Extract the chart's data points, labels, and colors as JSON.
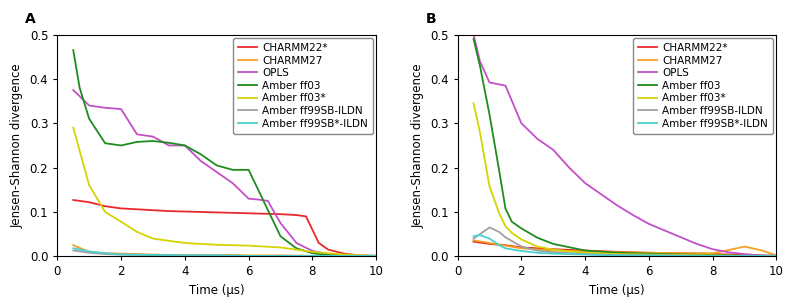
{
  "panel_A": {
    "label": "A",
    "xlabel": "Time (μs)",
    "ylabel": "Jensen-Shannon divergence",
    "xlim": [
      0,
      10
    ],
    "ylim": [
      0,
      0.5
    ],
    "xticks": [
      0,
      2,
      4,
      6,
      8,
      10
    ],
    "yticks": [
      0.0,
      0.1,
      0.2,
      0.3,
      0.4,
      0.5
    ],
    "series": {
      "CHARMM22*": {
        "color": "#e8292a",
        "x": [
          0.5,
          1.0,
          1.5,
          2.0,
          2.5,
          3.0,
          3.5,
          4.0,
          4.5,
          5.0,
          5.5,
          6.0,
          6.5,
          7.0,
          7.5,
          7.8,
          8.2,
          8.5,
          9.0,
          9.5,
          10.0
        ],
        "y": [
          0.127,
          0.122,
          0.113,
          0.108,
          0.106,
          0.104,
          0.102,
          0.101,
          0.1,
          0.099,
          0.098,
          0.097,
          0.096,
          0.095,
          0.093,
          0.09,
          0.03,
          0.015,
          0.006,
          0.002,
          0.001
        ]
      },
      "CHARMM27": {
        "color": "#f4a022",
        "x": [
          0.5,
          1.0,
          1.5,
          2.0,
          2.5,
          3.0,
          3.5,
          4.0,
          4.5,
          5.0,
          5.5,
          6.0,
          6.5,
          7.0,
          8.0,
          9.0,
          10.0
        ],
        "y": [
          0.025,
          0.01,
          0.007,
          0.006,
          0.005,
          0.004,
          0.003,
          0.003,
          0.003,
          0.003,
          0.003,
          0.002,
          0.002,
          0.002,
          0.001,
          0.001,
          0.001
        ]
      },
      "OPLS": {
        "color": "#c44fc9",
        "x": [
          0.5,
          1.0,
          1.5,
          2.0,
          2.5,
          3.0,
          3.5,
          4.0,
          4.5,
          5.0,
          5.5,
          6.0,
          6.3,
          6.6,
          7.0,
          7.5,
          8.0,
          8.5,
          9.0,
          9.5,
          10.0
        ],
        "y": [
          0.375,
          0.34,
          0.335,
          0.332,
          0.275,
          0.27,
          0.25,
          0.25,
          0.215,
          0.19,
          0.165,
          0.13,
          0.128,
          0.125,
          0.075,
          0.03,
          0.012,
          0.005,
          0.003,
          0.001,
          0.001
        ]
      },
      "Amber ff03": {
        "color": "#1e8c1e",
        "x": [
          0.5,
          0.7,
          1.0,
          1.5,
          2.0,
          2.5,
          3.0,
          3.5,
          4.0,
          4.5,
          5.0,
          5.5,
          6.0,
          6.5,
          7.0,
          7.5,
          8.0,
          8.5,
          9.0,
          10.0
        ],
        "y": [
          0.465,
          0.38,
          0.31,
          0.255,
          0.25,
          0.258,
          0.26,
          0.256,
          0.25,
          0.23,
          0.205,
          0.195,
          0.195,
          0.12,
          0.045,
          0.018,
          0.007,
          0.003,
          0.001,
          0.001
        ]
      },
      "Amber ff03*": {
        "color": "#d4d400",
        "x": [
          0.5,
          1.0,
          1.5,
          2.0,
          2.5,
          3.0,
          3.5,
          4.0,
          4.5,
          5.0,
          5.5,
          6.0,
          6.5,
          7.0,
          7.5,
          8.0,
          9.0,
          10.0
        ],
        "y": [
          0.29,
          0.16,
          0.1,
          0.078,
          0.055,
          0.04,
          0.035,
          0.03,
          0.028,
          0.026,
          0.025,
          0.024,
          0.022,
          0.02,
          0.015,
          0.01,
          0.004,
          0.001
        ]
      },
      "Amber ff99SB-ILDN": {
        "color": "#a0a0a0",
        "x": [
          0.5,
          1.0,
          1.5,
          2.0,
          3.0,
          4.0,
          5.0,
          6.0,
          7.0,
          8.0,
          9.0,
          10.0
        ],
        "y": [
          0.013,
          0.008,
          0.005,
          0.004,
          0.003,
          0.002,
          0.002,
          0.001,
          0.001,
          0.001,
          0.001,
          0.001
        ]
      },
      "Amber ff99SB*-ILDN": {
        "color": "#4bcfcf",
        "x": [
          0.5,
          1.0,
          1.5,
          2.0,
          3.0,
          4.0,
          5.0,
          6.0,
          7.0,
          8.0,
          9.0,
          10.0
        ],
        "y": [
          0.018,
          0.011,
          0.007,
          0.004,
          0.003,
          0.002,
          0.002,
          0.001,
          0.001,
          0.001,
          0.001,
          0.001
        ]
      }
    }
  },
  "panel_B": {
    "label": "B",
    "xlabel": "Time (μs)",
    "ylabel": "Jensen-Shannon divergence",
    "xlim": [
      0,
      10
    ],
    "ylim": [
      0,
      0.5
    ],
    "xticks": [
      0,
      2,
      4,
      6,
      8,
      10
    ],
    "yticks": [
      0.0,
      0.1,
      0.2,
      0.3,
      0.4,
      0.5
    ],
    "series": {
      "CHARMM22*": {
        "color": "#e8292a",
        "x": [
          0.5,
          1.0,
          1.5,
          2.0,
          3.0,
          4.0,
          5.0,
          6.0,
          7.0,
          8.0,
          9.0,
          9.5,
          10.0
        ],
        "y": [
          0.033,
          0.028,
          0.025,
          0.02,
          0.016,
          0.013,
          0.01,
          0.008,
          0.007,
          0.005,
          0.003,
          0.002,
          0.001
        ]
      },
      "CHARMM27": {
        "color": "#f4a022",
        "x": [
          0.5,
          1.0,
          1.5,
          2.0,
          3.0,
          4.0,
          5.0,
          6.0,
          7.0,
          8.0,
          8.5,
          9.0,
          9.5,
          10.0
        ],
        "y": [
          0.036,
          0.03,
          0.024,
          0.018,
          0.013,
          0.011,
          0.009,
          0.008,
          0.007,
          0.007,
          0.014,
          0.022,
          0.014,
          0.002
        ]
      },
      "OPLS": {
        "color": "#c44fc9",
        "x": [
          0.5,
          0.7,
          1.0,
          1.5,
          2.0,
          2.5,
          3.0,
          3.5,
          4.0,
          4.5,
          5.0,
          5.5,
          6.0,
          6.5,
          7.0,
          7.5,
          8.0,
          8.5,
          9.0,
          9.5,
          10.0
        ],
        "y": [
          0.5,
          0.44,
          0.392,
          0.385,
          0.3,
          0.265,
          0.24,
          0.2,
          0.165,
          0.14,
          0.115,
          0.093,
          0.073,
          0.058,
          0.043,
          0.028,
          0.016,
          0.009,
          0.005,
          0.002,
          0.001
        ]
      },
      "Amber ff03": {
        "color": "#1e8c1e",
        "x": [
          0.5,
          0.7,
          1.0,
          1.3,
          1.5,
          1.7,
          2.0,
          2.5,
          3.0,
          4.0,
          5.0,
          6.0,
          7.0,
          8.0,
          9.0,
          10.0
        ],
        "y": [
          0.49,
          0.43,
          0.32,
          0.195,
          0.108,
          0.078,
          0.063,
          0.042,
          0.028,
          0.013,
          0.008,
          0.006,
          0.004,
          0.003,
          0.001,
          0.001
        ]
      },
      "Amber ff03*": {
        "color": "#d4d400",
        "x": [
          0.5,
          0.7,
          1.0,
          1.3,
          1.5,
          1.7,
          2.0,
          2.5,
          3.0,
          4.0,
          5.0,
          6.0,
          7.0,
          8.0,
          9.0,
          10.0
        ],
        "y": [
          0.345,
          0.28,
          0.158,
          0.098,
          0.068,
          0.053,
          0.038,
          0.022,
          0.015,
          0.008,
          0.005,
          0.004,
          0.003,
          0.002,
          0.001,
          0.001
        ]
      },
      "Amber ff99SB-ILDN": {
        "color": "#a0a0a0",
        "x": [
          0.5,
          0.7,
          1.0,
          1.3,
          1.5,
          2.0,
          2.5,
          3.0,
          4.0,
          5.0,
          6.0,
          7.0,
          8.0,
          9.0,
          10.0
        ],
        "y": [
          0.04,
          0.05,
          0.065,
          0.055,
          0.043,
          0.022,
          0.013,
          0.009,
          0.005,
          0.003,
          0.002,
          0.002,
          0.001,
          0.001,
          0.001
        ]
      },
      "Amber ff99SB*-ILDN": {
        "color": "#4bcfcf",
        "x": [
          0.5,
          0.7,
          1.0,
          1.3,
          1.5,
          2.0,
          2.5,
          3.0,
          4.0,
          5.0,
          6.0,
          7.0,
          8.0,
          9.0,
          10.0
        ],
        "y": [
          0.045,
          0.048,
          0.04,
          0.025,
          0.018,
          0.012,
          0.008,
          0.006,
          0.004,
          0.002,
          0.002,
          0.001,
          0.001,
          0.001,
          0.001
        ]
      }
    }
  },
  "legend_order": [
    "CHARMM22*",
    "CHARMM27",
    "OPLS",
    "Amber ff03",
    "Amber ff03*",
    "Amber ff99SB-ILDN",
    "Amber ff99SB*-ILDN"
  ],
  "linewidth": 1.3,
  "font_size": 8.5,
  "label_fontsize": 10,
  "legend_fontsize": 7.5
}
